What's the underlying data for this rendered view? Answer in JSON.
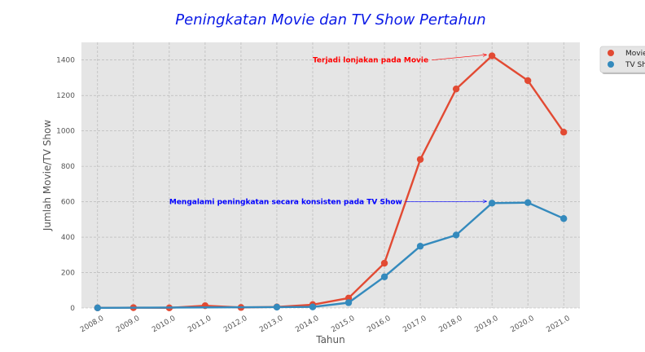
{
  "chart_data": {
    "type": "line",
    "title": "Peningkatan Movie dan TV Show Pertahun",
    "xlabel": "Tahun",
    "ylabel": "Jumlah Movie/TV Show",
    "x": [
      2008,
      2009,
      2010,
      2011,
      2012,
      2013,
      2014,
      2015,
      2016,
      2017,
      2018,
      2019,
      2020,
      2021
    ],
    "x_tick_labels": [
      "2008.0",
      "2009.0",
      "2010.0",
      "2011.0",
      "2012.0",
      "2013.0",
      "2014.0",
      "2015.0",
      "2016.0",
      "2017.0",
      "2018.0",
      "2019.0",
      "2020.0",
      "2021.0"
    ],
    "y_ticks": [
      0,
      200,
      400,
      600,
      800,
      1000,
      1200,
      1400
    ],
    "ylim": [
      0,
      1500
    ],
    "xlim": [
      2007.55,
      2021.45
    ],
    "grid": true,
    "legend_position": "upper-right-outside",
    "series": [
      {
        "name": "Movie",
        "color": "#e24a33",
        "x": [
          2008,
          2009,
          2010,
          2011,
          2012,
          2013,
          2014,
          2015,
          2016,
          2017,
          2018,
          2019,
          2020,
          2021
        ],
        "values": [
          1,
          2,
          1,
          13,
          3,
          6,
          19,
          56,
          253,
          839,
          1237,
          1424,
          1284,
          993
        ]
      },
      {
        "name": "TV Show",
        "color": "#348abd",
        "x": [
          2008,
          2013,
          2014,
          2015,
          2016,
          2017,
          2018,
          2019,
          2020,
          2021
        ],
        "values": [
          1,
          5,
          6,
          30,
          176,
          349,
          412,
          592,
          595,
          505
        ]
      }
    ],
    "annotations": [
      {
        "text": "Terjadi lonjakan pada Movie",
        "color": "#ff0000",
        "text_at": [
          2014.0,
          1400
        ],
        "arrow_to": [
          2018.85,
          1430
        ]
      },
      {
        "text": "Mengalami peningkatan secara konsisten pada TV Show",
        "color": "#0000ff",
        "text_at": [
          2010.0,
          600
        ],
        "arrow_to": [
          2018.85,
          602
        ]
      }
    ]
  },
  "legend": {
    "items": [
      "Movie",
      "TV Show"
    ]
  }
}
